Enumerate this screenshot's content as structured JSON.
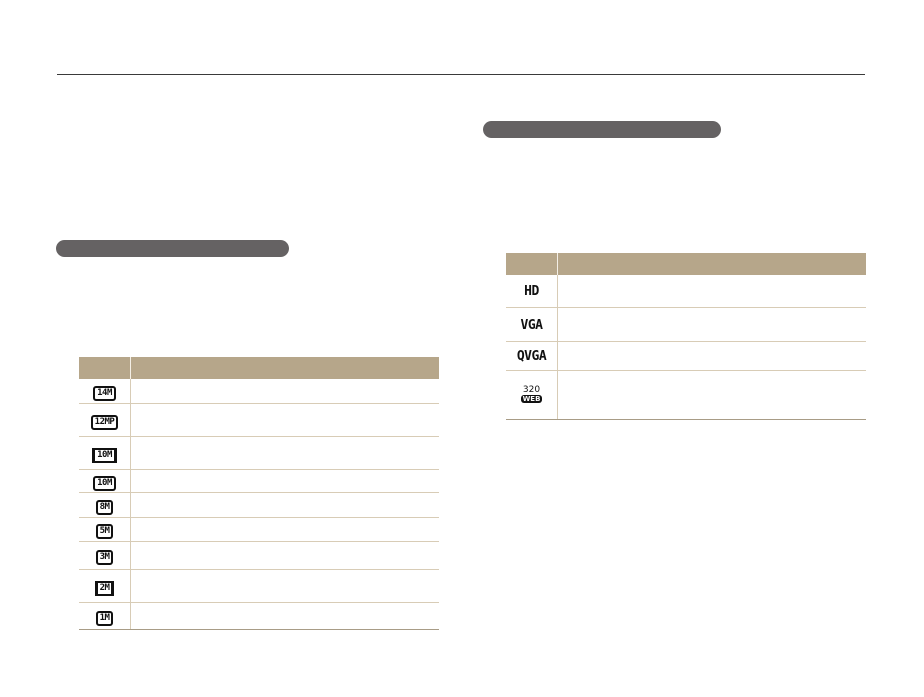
{
  "colors": {
    "header_fill": "#b6a68a",
    "pill_fill": "#656263",
    "row_divider": "#d8ccb6"
  },
  "left_table": {
    "rows": [
      {
        "icon": "14M",
        "wide": false
      },
      {
        "icon": "12MP",
        "wide": false
      },
      {
        "icon": "10M",
        "wide": true
      },
      {
        "icon": "10M",
        "wide": false
      },
      {
        "icon": "8M",
        "wide": false
      },
      {
        "icon": "5M",
        "wide": false
      },
      {
        "icon": "3M",
        "wide": false
      },
      {
        "icon": "2M",
        "wide": true
      },
      {
        "icon": "1M",
        "wide": false
      }
    ]
  },
  "right_table": {
    "rows": [
      {
        "icon": "HD"
      },
      {
        "icon": "VGA"
      },
      {
        "icon": "QVGA"
      },
      {
        "icon": "320",
        "badge": "WEB"
      }
    ]
  }
}
